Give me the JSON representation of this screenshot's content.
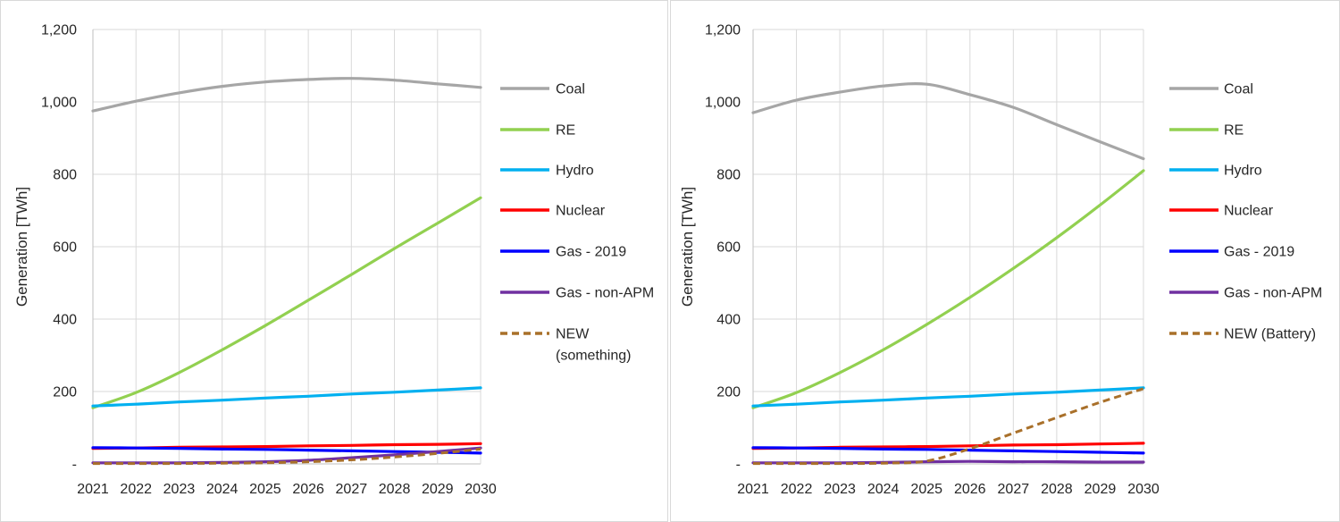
{
  "page": {
    "background": "#ffffff",
    "panel_border_color": "#d9d9d9",
    "gridline_color": "#d9d9d9",
    "axis_line_color": "#bfbfbf",
    "text_color": "#262626"
  },
  "chart_data": [
    {
      "type": "line",
      "title": "",
      "xlabel": "",
      "ylabel": "Generation [TWh]",
      "x": [
        2021,
        2022,
        2023,
        2024,
        2025,
        2026,
        2027,
        2028,
        2029,
        2030
      ],
      "xtick_labels": [
        "2021",
        "2022",
        "2023",
        "2024",
        "2025",
        "2026",
        "2027",
        "2028",
        "2029",
        "2030"
      ],
      "ylim": [
        0,
        1200
      ],
      "ytick_values": [
        0,
        200,
        400,
        600,
        800,
        1000,
        1200
      ],
      "ytick_labels": [
        "-",
        "200",
        "400",
        "600",
        "800",
        "1,000",
        "1,200"
      ],
      "grid": true,
      "legend_position": "right",
      "series": [
        {
          "name": "Coal",
          "color": "#a6a6a6",
          "dash": false,
          "values": [
            975,
            1002,
            1025,
            1043,
            1055,
            1062,
            1065,
            1060,
            1050,
            1040
          ]
        },
        {
          "name": "RE",
          "color": "#92d050",
          "dash": false,
          "values": [
            155,
            197,
            252,
            315,
            382,
            452,
            523,
            595,
            665,
            735
          ]
        },
        {
          "name": "Hydro",
          "color": "#00b0f0",
          "dash": false,
          "values": [
            160,
            165,
            171,
            176,
            182,
            187,
            193,
            198,
            204,
            210
          ]
        },
        {
          "name": "Nuclear",
          "color": "#ff0000",
          "dash": false,
          "values": [
            43,
            44,
            46,
            47,
            48,
            50,
            51,
            53,
            54,
            56
          ]
        },
        {
          "name": "Gas - 2019",
          "color": "#0000ff",
          "dash": false,
          "values": [
            45,
            44,
            43,
            41,
            40,
            38,
            36,
            34,
            32,
            30
          ]
        },
        {
          "name": "Gas - non-APM",
          "color": "#7030a0",
          "dash": false,
          "values": [
            3,
            3,
            3,
            4,
            6,
            10,
            17,
            25,
            34,
            44
          ]
        },
        {
          "name": "NEW (something)",
          "legend_lines": [
            "NEW",
            "(something)"
          ],
          "color": "#a9702a",
          "dash": true,
          "values": [
            1,
            1,
            1,
            2,
            3,
            6,
            11,
            19,
            29,
            41
          ]
        }
      ]
    },
    {
      "type": "line",
      "title": "",
      "xlabel": "",
      "ylabel": "Generation [TWh]",
      "x": [
        2021,
        2022,
        2023,
        2024,
        2025,
        2026,
        2027,
        2028,
        2029,
        2030
      ],
      "xtick_labels": [
        "2021",
        "2022",
        "2023",
        "2024",
        "2025",
        "2026",
        "2027",
        "2028",
        "2029",
        "2030"
      ],
      "ylim": [
        0,
        1200
      ],
      "ytick_values": [
        0,
        200,
        400,
        600,
        800,
        1000,
        1200
      ],
      "ytick_labels": [
        "-",
        "200",
        "400",
        "600",
        "800",
        "1,000",
        "1,200"
      ],
      "grid": true,
      "legend_position": "right",
      "series": [
        {
          "name": "Coal",
          "color": "#a6a6a6",
          "dash": false,
          "values": [
            970,
            1005,
            1027,
            1044,
            1049,
            1020,
            985,
            937,
            890,
            843
          ]
        },
        {
          "name": "RE",
          "color": "#92d050",
          "dash": false,
          "values": [
            155,
            197,
            252,
            315,
            385,
            460,
            540,
            625,
            715,
            810
          ]
        },
        {
          "name": "Hydro",
          "color": "#00b0f0",
          "dash": false,
          "values": [
            160,
            165,
            171,
            176,
            182,
            187,
            193,
            198,
            204,
            210
          ]
        },
        {
          "name": "Nuclear",
          "color": "#ff0000",
          "dash": false,
          "values": [
            43,
            44,
            46,
            47,
            48,
            50,
            52,
            53,
            55,
            57
          ]
        },
        {
          "name": "Gas - 2019",
          "color": "#0000ff",
          "dash": false,
          "values": [
            45,
            44,
            43,
            41,
            40,
            38,
            36,
            34,
            32,
            30
          ]
        },
        {
          "name": "Gas - non-APM",
          "color": "#7030a0",
          "dash": false,
          "values": [
            3,
            3,
            3,
            4,
            6,
            7,
            6,
            6,
            5,
            5
          ]
        },
        {
          "name": "NEW (Battery)",
          "color": "#a9702a",
          "dash": true,
          "values": [
            1,
            1,
            1,
            2,
            8,
            42,
            85,
            128,
            170,
            208
          ]
        }
      ]
    }
  ]
}
